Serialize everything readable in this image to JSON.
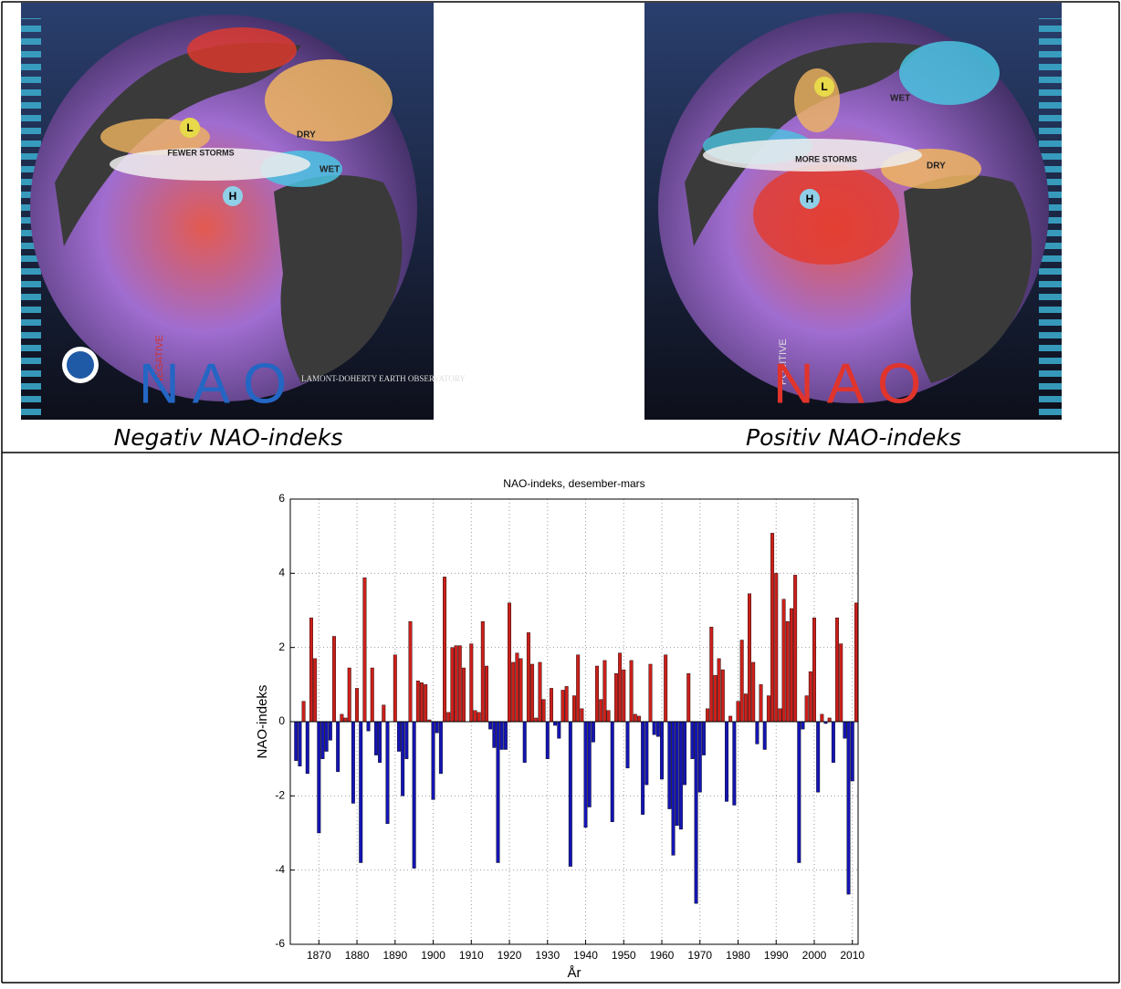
{
  "panels": [
    {
      "badge": "NEGATIVE",
      "logo": "NAO",
      "storms": "FEWER STORMS",
      "dry": "DRY",
      "wet": "WET",
      "low": "L",
      "high": "H",
      "credit": "LAMONT-DOHERTY EARTH OBSERVATORY",
      "caption": "Negativ NAO-indeks"
    },
    {
      "badge": "POSITIVE",
      "logo": "NAO",
      "storms": "MORE STORMS",
      "dry": "DRY",
      "wet": "WET",
      "low": "L",
      "high": "H",
      "caption": "Positiv NAO-indeks"
    }
  ],
  "chart_data": {
    "type": "bar",
    "title": "NAO-indeks, desember-mars",
    "x_label": "År",
    "y_label": "NAO-indeks",
    "positive_color": "#cc1f1a",
    "negative_color": "#1414b4",
    "grid": true,
    "xlim": [
      1862.5,
      2011.5
    ],
    "xticks": [
      1870,
      1880,
      1890,
      1900,
      1910,
      1920,
      1930,
      1940,
      1950,
      1960,
      1970,
      1980,
      1990,
      2000,
      2010
    ],
    "ylim": [
      -6,
      6
    ],
    "yticks": [
      -6,
      -4,
      -2,
      0,
      2,
      4,
      6
    ],
    "x": [
      1864,
      1865,
      1866,
      1867,
      1868,
      1869,
      1870,
      1871,
      1872,
      1873,
      1874,
      1875,
      1876,
      1877,
      1878,
      1879,
      1880,
      1881,
      1882,
      1883,
      1884,
      1885,
      1886,
      1887,
      1888,
      1889,
      1890,
      1891,
      1892,
      1893,
      1894,
      1895,
      1896,
      1897,
      1898,
      1899,
      1900,
      1901,
      1902,
      1903,
      1904,
      1905,
      1906,
      1907,
      1908,
      1909,
      1910,
      1911,
      1912,
      1913,
      1914,
      1915,
      1916,
      1917,
      1918,
      1919,
      1920,
      1921,
      1922,
      1923,
      1924,
      1925,
      1926,
      1927,
      1928,
      1929,
      1930,
      1931,
      1932,
      1933,
      1934,
      1935,
      1936,
      1937,
      1938,
      1939,
      1940,
      1941,
      1942,
      1943,
      1944,
      1945,
      1946,
      1947,
      1948,
      1949,
      1950,
      1951,
      1952,
      1953,
      1954,
      1955,
      1956,
      1957,
      1958,
      1959,
      1960,
      1961,
      1962,
      1963,
      1964,
      1965,
      1966,
      1967,
      1968,
      1969,
      1970,
      1971,
      1972,
      1973,
      1974,
      1975,
      1976,
      1977,
      1978,
      1979,
      1980,
      1981,
      1982,
      1983,
      1984,
      1985,
      1986,
      1987,
      1988,
      1989,
      1990,
      1991,
      1992,
      1993,
      1994,
      1995,
      1996,
      1997,
      1998,
      1999,
      2000,
      2001,
      2002,
      2003,
      2004,
      2005,
      2006,
      2007,
      2008,
      2009,
      2010,
      2011
    ],
    "values": [
      -1.05,
      -1.2,
      0.55,
      -1.4,
      2.8,
      1.7,
      -3.0,
      -1.0,
      -0.8,
      -0.5,
      2.3,
      -1.35,
      0.2,
      0.1,
      1.45,
      -2.2,
      0.9,
      -3.8,
      3.88,
      -0.25,
      1.45,
      -0.9,
      -1.1,
      0.45,
      -2.75,
      0.0,
      1.8,
      -0.8,
      -2.0,
      -1.0,
      2.7,
      -3.95,
      1.1,
      1.05,
      1.0,
      0.05,
      -2.1,
      -0.3,
      -1.4,
      3.9,
      0.25,
      2.0,
      2.05,
      2.05,
      1.45,
      0.0,
      2.1,
      0.3,
      0.25,
      2.7,
      1.5,
      -0.2,
      -0.7,
      -3.8,
      -0.75,
      -0.75,
      3.2,
      1.6,
      1.85,
      1.7,
      -1.1,
      2.4,
      1.55,
      0.1,
      1.6,
      0.6,
      -1.0,
      0.9,
      -0.1,
      -0.45,
      0.85,
      0.95,
      -3.9,
      0.7,
      1.8,
      0.35,
      -2.85,
      -2.3,
      -0.55,
      1.5,
      0.6,
      1.65,
      0.3,
      -2.7,
      1.3,
      1.85,
      1.4,
      -1.25,
      1.65,
      0.2,
      0.15,
      -2.5,
      -1.7,
      1.55,
      -0.35,
      -0.4,
      -1.55,
      1.8,
      -2.35,
      -3.6,
      -2.8,
      -2.9,
      -1.7,
      1.3,
      -1.0,
      -4.9,
      -1.9,
      -0.9,
      0.35,
      2.55,
      1.25,
      1.7,
      1.4,
      -2.15,
      0.15,
      -2.25,
      0.55,
      2.2,
      0.75,
      3.45,
      1.6,
      -0.6,
      1.0,
      -0.75,
      0.7,
      5.08,
      4.0,
      0.35,
      3.3,
      2.7,
      3.05,
      3.95,
      -3.8,
      -0.2,
      0.7,
      1.35,
      2.8,
      -1.9,
      0.2,
      -0.05,
      0.1,
      -1.1,
      2.8,
      2.1,
      -0.45,
      -4.65,
      -1.6,
      3.2
    ]
  }
}
